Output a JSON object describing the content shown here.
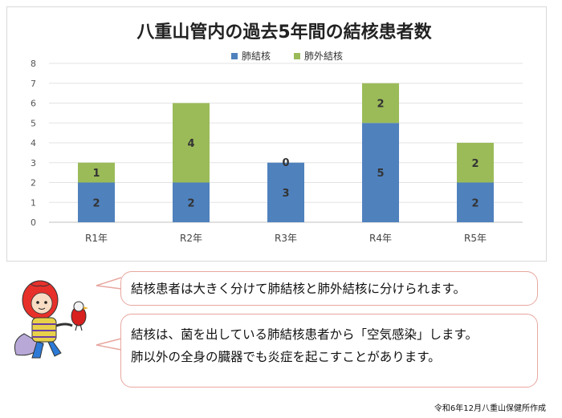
{
  "chart_data": {
    "type": "bar",
    "stacked": true,
    "title": "八重山管内の過去5年間の結核患者数",
    "categories": [
      "R1年",
      "R2年",
      "R3年",
      "R4年",
      "R5年"
    ],
    "series": [
      {
        "name": "肺結核",
        "values": [
          2,
          2,
          3,
          5,
          2
        ],
        "color": "#4f81bd"
      },
      {
        "name": "肺外結核",
        "values": [
          1,
          4,
          0,
          2,
          2
        ],
        "color": "#9bbb59"
      }
    ],
    "ylim": [
      0,
      8
    ],
    "yticks": [
      0,
      1,
      2,
      3,
      4,
      5,
      6,
      7,
      8
    ],
    "grid": true,
    "legend": "top"
  },
  "messages": {
    "line1": "結核患者は大きく分けて肺結核と肺外結核に分けられます。",
    "line2": "結核は、菌を出している肺結核患者から「空気感染」します。",
    "line3": "肺以外の全身の臓器でも炎症を起こすことがあります。"
  },
  "footer": "令和6年12月八重山保健所作成"
}
